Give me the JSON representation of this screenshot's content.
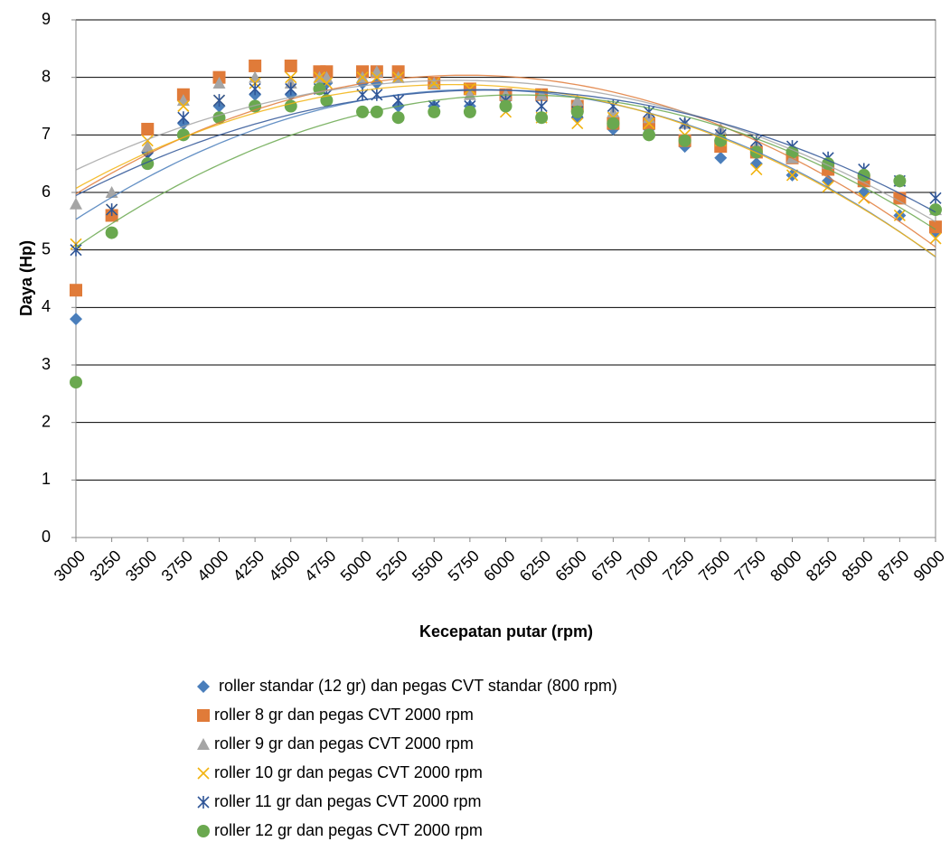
{
  "chart_data": {
    "type": "scatter",
    "x_label": "Kecepatan putar (rpm)",
    "y_label": "Daya (Hp)",
    "x": [
      3000,
      3250,
      3500,
      3750,
      4000,
      4250,
      4500,
      4700,
      4750,
      5000,
      5100,
      5250,
      5500,
      5750,
      6000,
      6250,
      6500,
      6750,
      7000,
      7250,
      7500,
      7750,
      8000,
      8250,
      8500,
      8750,
      9000
    ],
    "xlim": [
      3000,
      9000
    ],
    "xticks": [
      3000,
      3250,
      3500,
      3750,
      4000,
      4250,
      4500,
      4750,
      5000,
      5250,
      5500,
      5750,
      6000,
      6250,
      6500,
      6750,
      7000,
      7250,
      7500,
      7750,
      8000,
      8250,
      8500,
      8750,
      9000
    ],
    "ylim": [
      0,
      9
    ],
    "yticks": [
      0,
      1,
      2,
      3,
      4,
      5,
      6,
      7,
      8,
      9
    ],
    "grid": true,
    "trendline": "polynomial",
    "trendline_order": 2,
    "legend": "bottom",
    "series": [
      {
        "name": "roller standar (12 gr) dan pegas CVT standar (800 rpm)",
        "color": "#4a7ebb",
        "marker": "diamond",
        "values": [
          3.8,
          5.6,
          6.7,
          7.2,
          7.5,
          7.7,
          7.7,
          7.8,
          7.9,
          7.9,
          7.9,
          7.5,
          7.5,
          7.5,
          7.6,
          7.7,
          7.3,
          7.1,
          7.1,
          6.8,
          6.6,
          6.5,
          6.3,
          6.2,
          6.0,
          5.6,
          5.3
        ]
      },
      {
        "name": "roller 8 gr dan pegas CVT 2000 rpm",
        "color": "#e07b39",
        "marker": "square",
        "values": [
          4.3,
          5.6,
          7.1,
          7.7,
          8.0,
          8.2,
          8.2,
          8.1,
          8.1,
          8.1,
          8.1,
          8.1,
          7.9,
          7.8,
          7.7,
          7.7,
          7.5,
          7.2,
          7.2,
          6.9,
          6.8,
          6.7,
          6.6,
          6.4,
          6.2,
          5.9,
          5.4
        ]
      },
      {
        "name": "roller 9 gr dan pegas CVT 2000 rpm",
        "color": "#a5a5a5",
        "marker": "triangle",
        "values": [
          5.8,
          6.0,
          6.8,
          7.6,
          7.9,
          8.0,
          7.9,
          8.0,
          8.0,
          8.0,
          8.1,
          8.0,
          7.9,
          7.7,
          7.7,
          7.7,
          7.6,
          7.4,
          7.3,
          7.2,
          7.1,
          6.8,
          6.6,
          6.5,
          6.3,
          6.2,
          5.7
        ]
      },
      {
        "name": "roller 10 gr dan pegas CVT 2000 rpm",
        "color": "#f2b30f",
        "marker": "x",
        "values": [
          5.1,
          5.7,
          6.9,
          7.5,
          7.6,
          7.9,
          8.0,
          8.0,
          7.9,
          8.0,
          8.0,
          8.0,
          7.9,
          7.8,
          7.4,
          7.3,
          7.2,
          7.3,
          7.2,
          7.0,
          6.9,
          6.4,
          6.3,
          6.1,
          5.9,
          5.6,
          5.2
        ]
      },
      {
        "name": "roller 11 gr dan pegas CVT 2000 rpm",
        "color": "#2f5597",
        "marker": "asterisk",
        "values": [
          5.0,
          5.7,
          6.6,
          7.3,
          7.6,
          7.8,
          7.8,
          7.8,
          7.7,
          7.7,
          7.7,
          7.6,
          7.5,
          7.5,
          7.6,
          7.5,
          7.4,
          7.5,
          7.4,
          7.2,
          7.0,
          6.9,
          6.8,
          6.6,
          6.4,
          6.2,
          5.9
        ]
      },
      {
        "name": "roller 12 gr dan pegas CVT 2000 rpm",
        "color": "#6aa84f",
        "marker": "circle",
        "values": [
          2.7,
          5.3,
          6.5,
          7.0,
          7.3,
          7.5,
          7.5,
          7.8,
          7.6,
          7.4,
          7.4,
          7.3,
          7.4,
          7.4,
          7.5,
          7.3,
          7.4,
          7.2,
          7.0,
          6.9,
          6.9,
          6.7,
          6.7,
          6.5,
          6.3,
          6.2,
          5.7
        ]
      }
    ]
  }
}
